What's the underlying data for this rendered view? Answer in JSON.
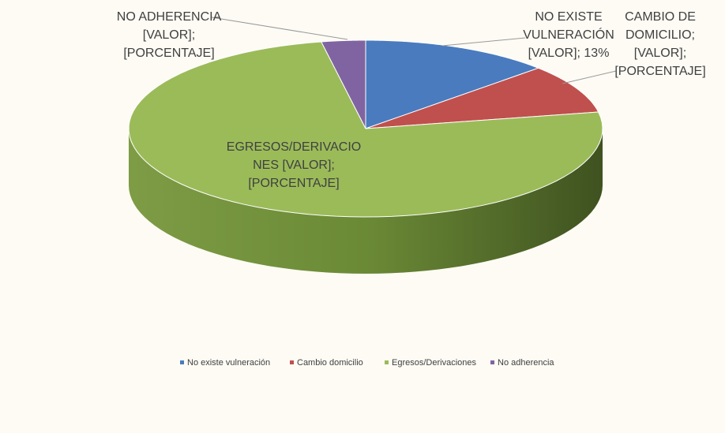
{
  "chart_data": {
    "type": "pie3d",
    "categories": [
      "No existe vulneración",
      "Cambio domicilio",
      "Egresos/Derivaciones",
      "No adherencia"
    ],
    "values": [
      13,
      9,
      75,
      3
    ],
    "colors": [
      "#4a7bbf",
      "#c0504d",
      "#9bbb59",
      "#8064a2"
    ],
    "slice_labels": [
      [
        "NO EXISTE",
        "VULNERACIÓN",
        "[VALOR]; 13%"
      ],
      [
        "CAMBIO DE",
        "DOMICILIO;",
        "[VALOR];",
        "[PORCENTAJE]"
      ],
      [
        "EGRESOS/DERIVACIO",
        "NES [VALOR];",
        "[PORCENTAJE]"
      ],
      [
        "NO ADHERENCIA",
        "[VALOR];",
        "[PORCENTAJE]"
      ]
    ],
    "legend": "bottom"
  }
}
